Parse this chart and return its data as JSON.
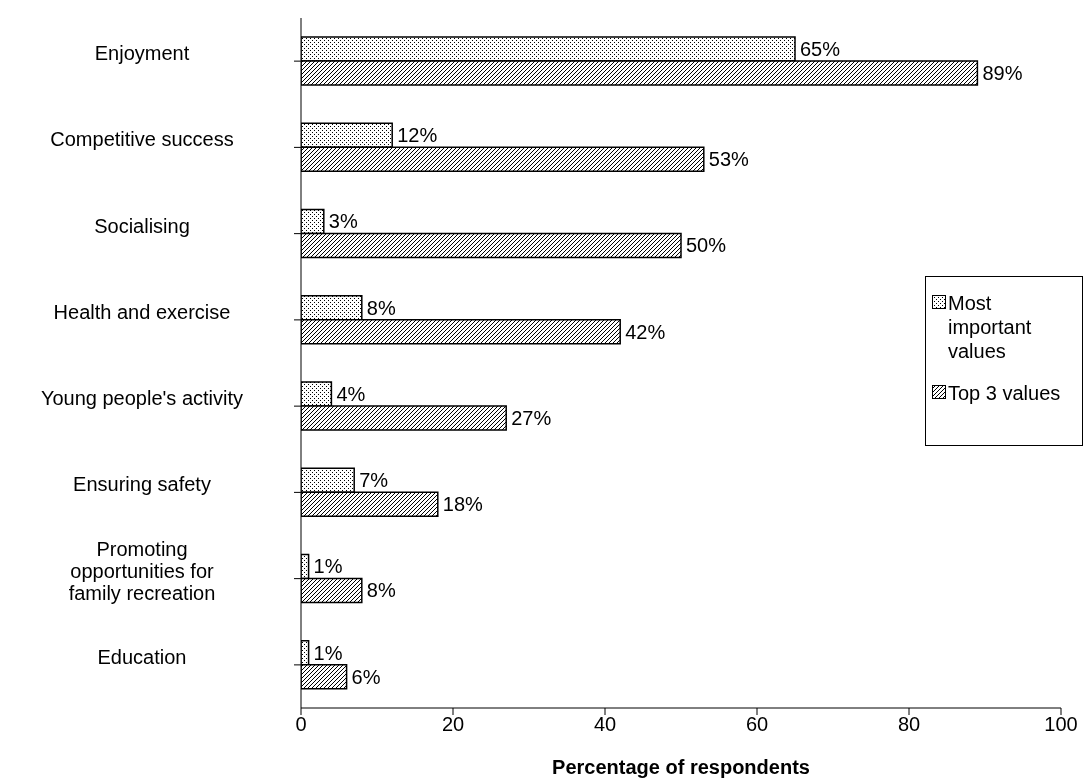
{
  "chart_data": {
    "type": "bar",
    "orientation": "horizontal",
    "xlabel": "Percentage of respondents",
    "categories": [
      "Enjoyment",
      "Competitive success",
      "Socialising",
      "Health and exercise",
      "Young people's activity",
      "Ensuring safety",
      "Promoting opportunities for family recreation",
      "Education"
    ],
    "series": [
      {
        "name": "Most important values",
        "color": "#000000",
        "values": [
          65,
          12,
          3,
          8,
          4,
          7,
          1,
          1
        ],
        "value_labels": [
          "65%",
          "12%",
          "3%",
          "8%",
          "4%",
          "7%",
          "1%",
          "1%"
        ]
      },
      {
        "name": "Top 3 values",
        "color": "#000000",
        "values": [
          89,
          53,
          50,
          42,
          27,
          18,
          8,
          6
        ],
        "value_labels": [
          "89%",
          "53%",
          "50%",
          "42%",
          "27%",
          "18%",
          "8%",
          "6%"
        ]
      }
    ],
    "xlim": [
      0,
      100
    ],
    "xticks": [
      0,
      20,
      40,
      60,
      80,
      100
    ],
    "legend": "right"
  }
}
